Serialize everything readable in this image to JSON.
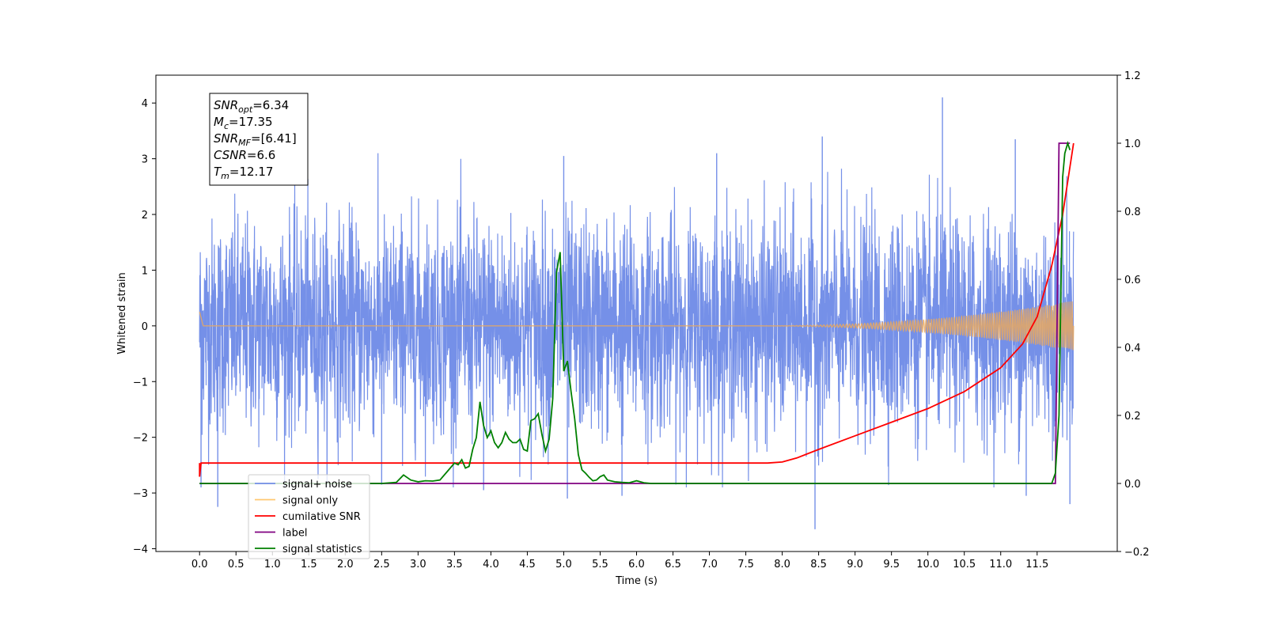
{
  "chart_data": {
    "type": "line",
    "xlabel": "Time (s)",
    "ylabel": "Whitened strain",
    "xlim": [
      -0.6,
      12.6
    ],
    "ylim": [
      -4.05,
      4.5
    ],
    "y2lim": [
      -0.2,
      1.2
    ],
    "x_ticks": [
      "0.0",
      "0.5",
      "1.0",
      "1.5",
      "2.0",
      "2.5",
      "3.0",
      "3.5",
      "4.0",
      "4.5",
      "5.0",
      "5.5",
      "6.0",
      "6.5",
      "7.0",
      "7.5",
      "8.0",
      "8.5",
      "9.0",
      "9.5",
      "10.0",
      "10.5",
      "11.0",
      "11.5"
    ],
    "y_ticks": [
      "4",
      "3",
      "2",
      "1",
      "0",
      "−1",
      "−2",
      "−3",
      "−4"
    ],
    "y2_ticks": [
      "1.2",
      "1.0",
      "0.8",
      "0.6",
      "0.4",
      "0.2",
      "0.0",
      "−0.2"
    ],
    "annotation": {
      "lines": [
        {
          "sym": "SNR",
          "sub": "opt",
          "val": "=6.34"
        },
        {
          "sym": "M",
          "sub": "c",
          "val": "=17.35"
        },
        {
          "sym": "SNR",
          "sub": "MF",
          "val": "=[6.41]"
        },
        {
          "sym": "CSNR",
          "sub": "",
          "val": "=6.6"
        },
        {
          "sym": "T",
          "sub": "m",
          "val": "=12.17"
        }
      ]
    },
    "legend": {
      "placement": "lower-left",
      "entries": [
        "signal+ noise",
        "signal only",
        "cumilative SNR",
        "label",
        "signal statistics"
      ]
    },
    "series": [
      {
        "name": "signal+ noise",
        "axis": "left",
        "color": "#7590e8",
        "x_range": [
          0.0,
          12.0
        ],
        "noise_sigma": 0.95,
        "spikes": [
          [
            0.02,
            -2.9
          ],
          [
            0.25,
            -3.25
          ],
          [
            2.5,
            -2.85
          ],
          [
            3.9,
            -2.95
          ],
          [
            5.05,
            -3.1
          ],
          [
            5.8,
            -3.05
          ],
          [
            8.45,
            -3.65
          ],
          [
            10.2,
            4.1
          ],
          [
            11.35,
            -3.05
          ],
          [
            11.95,
            -3.2
          ],
          [
            8.55,
            3.4
          ],
          [
            11.2,
            3.35
          ],
          [
            7.1,
            3.1
          ],
          [
            5.0,
            3.05
          ]
        ]
      },
      {
        "name": "signal only",
        "axis": "left",
        "color": "#e8a860",
        "x_range": [
          0.0,
          12.0
        ],
        "chirp_start": 7.6,
        "amplitude_end": 0.45
      },
      {
        "name": "cumilative SNR",
        "axis": "right",
        "color": "#ff0000",
        "x": [
          0.0,
          0.02,
          7.5,
          7.8,
          8.0,
          8.2,
          8.5,
          9.0,
          9.5,
          10.0,
          10.5,
          11.0,
          11.3,
          11.5,
          11.7,
          11.85,
          12.0
        ],
        "y": [
          0.02,
          0.06,
          0.06,
          0.06,
          0.063,
          0.075,
          0.1,
          0.14,
          0.18,
          0.22,
          0.27,
          0.34,
          0.41,
          0.49,
          0.64,
          0.79,
          1.0
        ]
      },
      {
        "name": "label",
        "axis": "right",
        "color": "#800080",
        "x": [
          0.0,
          11.75,
          11.8,
          11.95
        ],
        "y": [
          0.0,
          0.0,
          1.0,
          1.0
        ]
      },
      {
        "name": "signal statistics",
        "axis": "right",
        "color": "#008000",
        "x": [
          0.0,
          2.5,
          2.7,
          2.8,
          2.9,
          3.0,
          3.1,
          3.2,
          3.3,
          3.4,
          3.5,
          3.55,
          3.6,
          3.65,
          3.7,
          3.75,
          3.8,
          3.85,
          3.9,
          3.95,
          4.0,
          4.05,
          4.1,
          4.15,
          4.2,
          4.25,
          4.3,
          4.35,
          4.4,
          4.45,
          4.5,
          4.55,
          4.6,
          4.65,
          4.7,
          4.75,
          4.8,
          4.85,
          4.9,
          4.95,
          5.0,
          5.05,
          5.1,
          5.15,
          5.2,
          5.25,
          5.3,
          5.35,
          5.4,
          5.45,
          5.5,
          5.55,
          5.6,
          5.7,
          5.8,
          5.9,
          6.0,
          6.1,
          6.2,
          6.3,
          6.4,
          6.5,
          6.6,
          6.8,
          7.0,
          7.2,
          7.5,
          7.7,
          8.0,
          11.7,
          11.75,
          11.8,
          11.85,
          11.88,
          11.92,
          11.95
        ],
        "y": [
          0.0,
          0.0,
          0.003,
          0.025,
          0.01,
          0.005,
          0.008,
          0.007,
          0.01,
          0.035,
          0.06,
          0.055,
          0.07,
          0.045,
          0.05,
          0.1,
          0.135,
          0.24,
          0.17,
          0.135,
          0.155,
          0.12,
          0.105,
          0.12,
          0.15,
          0.13,
          0.12,
          0.12,
          0.13,
          0.1,
          0.095,
          0.185,
          0.19,
          0.205,
          0.145,
          0.095,
          0.13,
          0.25,
          0.62,
          0.68,
          0.33,
          0.36,
          0.27,
          0.19,
          0.085,
          0.04,
          0.03,
          0.018,
          0.008,
          0.01,
          0.02,
          0.025,
          0.01,
          0.005,
          0.003,
          0.002,
          0.008,
          0.002,
          0.0,
          0.0,
          0.0,
          0.0,
          0.0,
          0.0,
          0.0,
          0.0,
          0.0,
          0.0,
          0.0,
          0.0,
          0.03,
          0.2,
          0.9,
          0.97,
          1.0,
          0.98
        ]
      }
    ]
  }
}
